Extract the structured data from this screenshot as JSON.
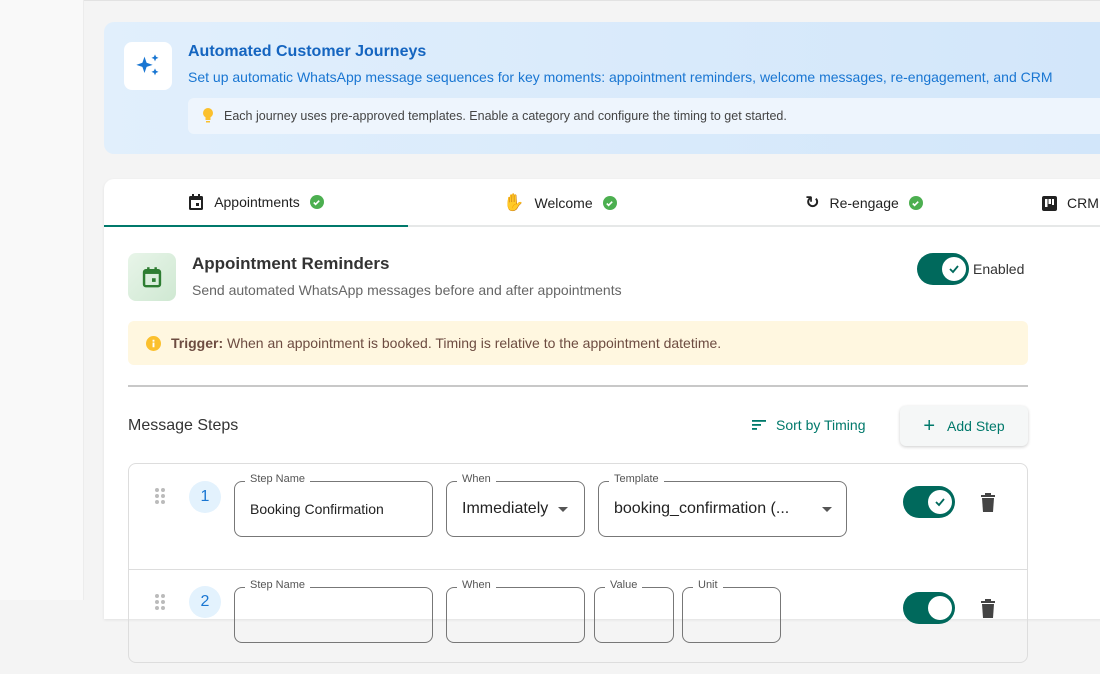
{
  "banner": {
    "title": "Automated Customer Journeys",
    "subtitle": "Set up automatic WhatsApp message sequences for key moments: appointment reminders, welcome messages, re-engagement, and CRM",
    "tip": "Each journey uses pre-approved templates. Enable a category and configure the timing to get started."
  },
  "tabs": [
    {
      "label": "Appointments",
      "icon": "calendar-icon",
      "complete": true,
      "active": true
    },
    {
      "label": "Welcome",
      "icon": "waving-hand-icon",
      "complete": true
    },
    {
      "label": "Re-engage",
      "icon": "refresh-icon",
      "complete": true
    },
    {
      "label": "CRM",
      "icon": "kanban-icon"
    }
  ],
  "section": {
    "title": "Appointment Reminders",
    "subtitle": "Send automated WhatsApp messages before and after appointments",
    "enabled": true,
    "enabled_label": "Enabled",
    "trigger_label": "Trigger:",
    "trigger_text": " When an appointment is booked. Timing is relative to the appointment datetime."
  },
  "steps_header": {
    "title": "Message Steps",
    "sort_label": "Sort by Timing",
    "add_label": "Add Step"
  },
  "steps": [
    {
      "number": "1",
      "step_name_label": "Step Name",
      "step_name": "Booking Confirmation",
      "when_label": "When",
      "when": "Immediately",
      "template_label": "Template",
      "template": "booking_confirmation (...",
      "enabled": true
    },
    {
      "number": "2",
      "step_name_label": "Step Name",
      "when_label": "When",
      "value_label": "Value",
      "unit_label": "Unit",
      "enabled": true
    }
  ],
  "colors": {
    "primary": "#00796b",
    "info": "#1565c0",
    "success": "#4caf50",
    "warning_bg": "#fff7e0"
  }
}
